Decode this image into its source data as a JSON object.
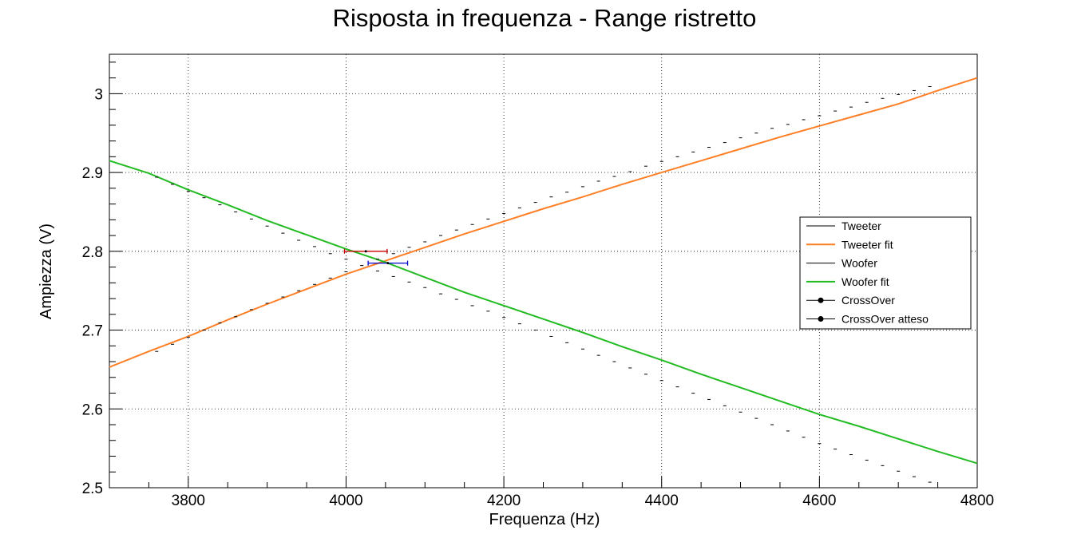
{
  "chart_data": {
    "type": "line",
    "title": "Risposta in frequenza - Range ristretto",
    "xlabel": "Frequenza (Hz)",
    "ylabel": "Ampiezza (V)",
    "xlim": [
      3700,
      4800
    ],
    "ylim": [
      2.5,
      3.05
    ],
    "x_ticks": [
      "3800",
      "4000",
      "4200",
      "4400",
      "4600",
      "4800"
    ],
    "y_ticks": [
      "2.5",
      "2.6",
      "2.7",
      "2.8",
      "2.9",
      "3"
    ],
    "grid": true,
    "legend_position": "right",
    "legend": [
      "Tweeter",
      "Tweeter fit",
      "Woofer",
      "Woofer fit",
      "CrossOver",
      "CrossOver atteso"
    ],
    "series": [
      {
        "name": "Tweeter",
        "kind": "data",
        "color": "#000000",
        "x": [
          3760,
          3780,
          3800,
          3820,
          3840,
          3860,
          3880,
          3900,
          3920,
          3940,
          3960,
          3980,
          4000,
          4020,
          4040,
          4060,
          4080,
          4100,
          4120,
          4140,
          4160,
          4180,
          4200,
          4220,
          4240,
          4260,
          4280,
          4300,
          4320,
          4340,
          4360,
          4380,
          4400,
          4420,
          4440,
          4460,
          4480,
          4500,
          4520,
          4540,
          4560,
          4580,
          4600,
          4620,
          4640,
          4660,
          4680,
          4700,
          4720,
          4740
        ],
        "y": [
          2.673,
          2.682,
          2.691,
          2.7,
          2.709,
          2.717,
          2.726,
          2.734,
          2.742,
          2.75,
          2.758,
          2.766,
          2.774,
          2.782,
          2.79,
          2.797,
          2.805,
          2.812,
          2.82,
          2.827,
          2.834,
          2.841,
          2.848,
          2.855,
          2.862,
          2.869,
          2.875,
          2.882,
          2.889,
          2.895,
          2.901,
          2.908,
          2.914,
          2.92,
          2.926,
          2.932,
          2.938,
          2.944,
          2.95,
          2.956,
          2.961,
          2.967,
          2.972,
          2.978,
          2.983,
          2.989,
          2.994,
          2.999,
          3.004,
          3.009
        ]
      },
      {
        "name": "Tweeter fit",
        "kind": "fit",
        "color": "#ff7f27",
        "x": [
          3700,
          3750,
          3800,
          3850,
          3900,
          3950,
          4000,
          4050,
          4100,
          4150,
          4200,
          4250,
          4300,
          4350,
          4400,
          4450,
          4500,
          4550,
          4600,
          4650,
          4700,
          4750,
          4800
        ],
        "y": [
          2.653,
          2.673,
          2.692,
          2.713,
          2.733,
          2.752,
          2.771,
          2.788,
          2.805,
          2.822,
          2.838,
          2.854,
          2.869,
          2.885,
          2.9,
          2.915,
          2.93,
          2.945,
          2.959,
          2.973,
          2.987,
          3.004,
          3.02
        ]
      },
      {
        "name": "Woofer",
        "kind": "data",
        "color": "#000000",
        "x": [
          3760,
          3780,
          3800,
          3820,
          3840,
          3860,
          3880,
          3900,
          3920,
          3940,
          3960,
          3980,
          4000,
          4020,
          4040,
          4060,
          4080,
          4100,
          4120,
          4140,
          4160,
          4180,
          4200,
          4220,
          4240,
          4260,
          4280,
          4300,
          4320,
          4340,
          4360,
          4380,
          4400,
          4420,
          4440,
          4460,
          4480,
          4500,
          4520,
          4540,
          4560,
          4580,
          4600,
          4620,
          4640,
          4660,
          4680,
          4700,
          4720,
          4740
        ],
        "y": [
          2.894,
          2.885,
          2.876,
          2.868,
          2.859,
          2.85,
          2.841,
          2.832,
          2.823,
          2.814,
          2.806,
          2.797,
          2.79,
          2.782,
          2.775,
          2.768,
          2.761,
          2.754,
          2.746,
          2.739,
          2.731,
          2.724,
          2.716,
          2.708,
          2.7,
          2.692,
          2.684,
          2.676,
          2.668,
          2.66,
          2.652,
          2.644,
          2.636,
          2.628,
          2.62,
          2.612,
          2.604,
          2.596,
          2.588,
          2.58,
          2.572,
          2.564,
          2.556,
          2.549,
          2.542,
          2.535,
          2.528,
          2.521,
          2.514,
          2.507
        ]
      },
      {
        "name": "Woofer fit",
        "kind": "fit",
        "color": "#22bb22",
        "x": [
          3700,
          3750,
          3800,
          3850,
          3900,
          3950,
          4000,
          4050,
          4100,
          4150,
          4200,
          4250,
          4300,
          4350,
          4400,
          4450,
          4500,
          4550,
          4600,
          4650,
          4700,
          4750,
          4800
        ],
        "y": [
          2.915,
          2.899,
          2.878,
          2.859,
          2.839,
          2.821,
          2.803,
          2.786,
          2.767,
          2.748,
          2.731,
          2.714,
          2.697,
          2.679,
          2.662,
          2.644,
          2.627,
          2.61,
          2.593,
          2.578,
          2.562,
          2.546,
          2.531
        ]
      },
      {
        "name": "CrossOver",
        "kind": "point",
        "color": "#0000cc",
        "x": 4053,
        "y": 2.785,
        "x_err": 25
      },
      {
        "name": "CrossOver atteso",
        "kind": "point",
        "color": "#cc0000",
        "x": 4025,
        "y": 2.8,
        "x_err": 27
      }
    ]
  }
}
